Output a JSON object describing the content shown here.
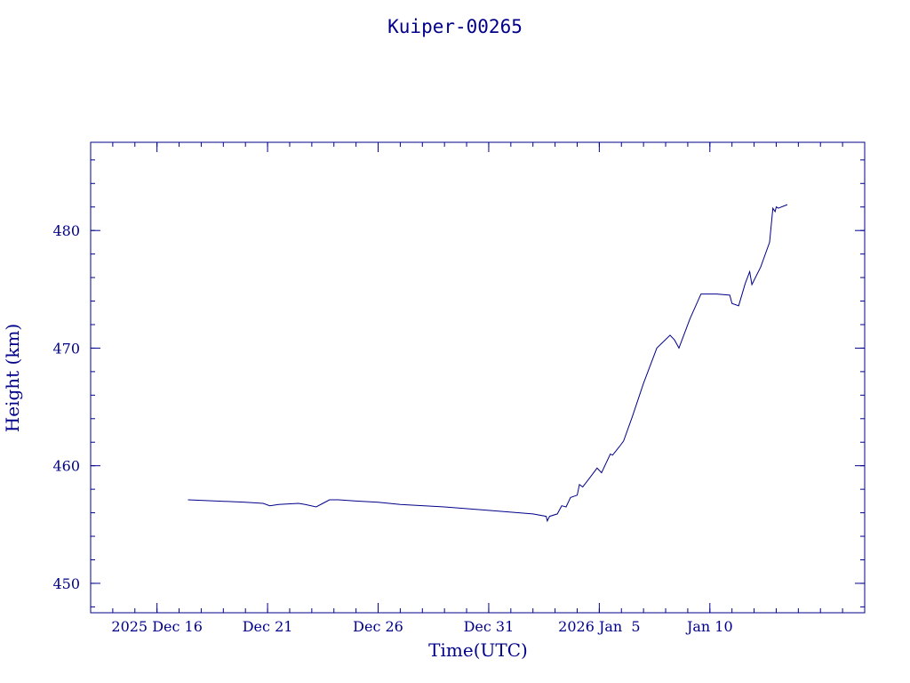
{
  "chart_data": {
    "type": "line",
    "title": "Kuiper-00265",
    "xlabel": "Time(UTC)",
    "ylabel": "Height (km)",
    "x_unit": "days relative to 2026 Jan 1 00:00 UTC",
    "xlim": [
      -19.0,
      16.0
    ],
    "ylim": [
      447.5,
      487.5
    ],
    "x_ticks": [
      {
        "value": -16,
        "label": "2025 Dec 16"
      },
      {
        "value": -11,
        "label": "Dec 21"
      },
      {
        "value": -6,
        "label": "Dec 26"
      },
      {
        "value": -1,
        "label": "Dec 31"
      },
      {
        "value": 4,
        "label": "2026 Jan  5"
      },
      {
        "value": 9,
        "label": "Jan 10"
      }
    ],
    "x_minor_step": 1,
    "y_ticks": [
      {
        "value": 450,
        "label": "450"
      },
      {
        "value": 460,
        "label": "460"
      },
      {
        "value": 470,
        "label": "470"
      },
      {
        "value": 480,
        "label": "480"
      }
    ],
    "y_minor_step": 2,
    "grid": false,
    "line_color": "#00008b",
    "series": [
      {
        "points": [
          [
            -14.6,
            457.1
          ],
          [
            -12.0,
            456.9
          ],
          [
            -11.2,
            456.8
          ],
          [
            -10.9,
            456.6
          ],
          [
            -10.5,
            456.7
          ],
          [
            -9.6,
            456.8
          ],
          [
            -9.3,
            456.7
          ],
          [
            -8.8,
            456.5
          ],
          [
            -8.5,
            456.8
          ],
          [
            -8.2,
            457.1
          ],
          [
            -7.8,
            457.1
          ],
          [
            -7.0,
            457.0
          ],
          [
            -6.0,
            456.9
          ],
          [
            -5.0,
            456.7
          ],
          [
            -3.0,
            456.5
          ],
          [
            -1.0,
            456.2
          ],
          [
            1.0,
            455.9
          ],
          [
            1.6,
            455.7
          ],
          [
            1.65,
            455.3
          ],
          [
            1.75,
            455.7
          ],
          [
            2.1,
            455.9
          ],
          [
            2.3,
            456.6
          ],
          [
            2.5,
            456.5
          ],
          [
            2.7,
            457.3
          ],
          [
            3.0,
            457.5
          ],
          [
            3.1,
            458.4
          ],
          [
            3.25,
            458.2
          ],
          [
            3.5,
            458.8
          ],
          [
            3.9,
            459.8
          ],
          [
            4.1,
            459.4
          ],
          [
            4.5,
            461.0
          ],
          [
            4.6,
            460.9
          ],
          [
            4.9,
            461.6
          ],
          [
            5.1,
            462.1
          ],
          [
            5.5,
            464.2
          ],
          [
            6.0,
            467.0
          ],
          [
            6.6,
            470.0
          ],
          [
            7.2,
            471.1
          ],
          [
            7.4,
            470.7
          ],
          [
            7.6,
            470.0
          ],
          [
            8.1,
            472.5
          ],
          [
            8.6,
            474.6
          ],
          [
            9.3,
            474.6
          ],
          [
            9.9,
            474.5
          ],
          [
            10.0,
            473.8
          ],
          [
            10.3,
            473.6
          ],
          [
            10.6,
            475.5
          ],
          [
            10.8,
            476.5
          ],
          [
            10.9,
            475.4
          ],
          [
            11.3,
            476.9
          ],
          [
            11.7,
            479.0
          ],
          [
            11.85,
            481.9
          ],
          [
            11.95,
            481.6
          ],
          [
            12.0,
            482.0
          ],
          [
            12.1,
            481.9
          ],
          [
            12.5,
            482.2
          ]
        ]
      }
    ]
  }
}
